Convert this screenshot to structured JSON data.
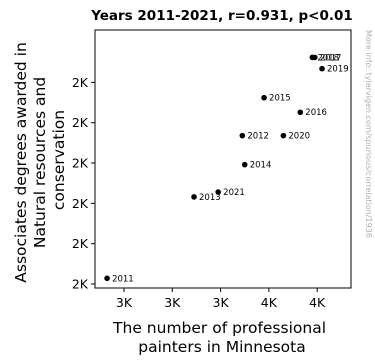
{
  "chart_data": {
    "type": "scatter",
    "title": "Years 2011-2021, r=0.931, p<0.01",
    "xlabel": "The number of professional painters in Minnesota",
    "xlabel_lines": [
      "The number of professional",
      "painters in Minnesota"
    ],
    "ylabel": "Associates degrees awarded in Natural resources and conservation",
    "ylabel_lines": [
      "Associates degrees awarded in",
      "Natural resources and",
      "conservation"
    ],
    "xlim": [
      3180,
      4240
    ],
    "ylim": [
      1845,
      2165
    ],
    "x_ticks": [
      {
        "value": 3300,
        "label": "3K"
      },
      {
        "value": 3500,
        "label": "3K"
      },
      {
        "value": 3700,
        "label": "3K"
      },
      {
        "value": 3900,
        "label": "4K"
      },
      {
        "value": 4100,
        "label": "4K"
      },
      {
        "value": 4300,
        "label": "4K"
      }
    ],
    "y_ticks": [
      {
        "value": 1850,
        "label": "2K"
      },
      {
        "value": 1900,
        "label": "2K"
      },
      {
        "value": 1950,
        "label": "2K"
      },
      {
        "value": 2000,
        "label": "2K"
      },
      {
        "value": 2050,
        "label": "2K"
      },
      {
        "value": 2100,
        "label": "2K"
      }
    ],
    "grid": false,
    "points": [
      {
        "label": "2011",
        "x": 3230,
        "y": 1857
      },
      {
        "label": "2012",
        "x": 3790,
        "y": 2034
      },
      {
        "label": "2013",
        "x": 3590,
        "y": 1958
      },
      {
        "label": "2014",
        "x": 3800,
        "y": 1998
      },
      {
        "label": "2015",
        "x": 3880,
        "y": 2081
      },
      {
        "label": "2016",
        "x": 4030,
        "y": 2063
      },
      {
        "label": "2017",
        "x": 4090,
        "y": 2131
      },
      {
        "label": "2018",
        "x": 4080,
        "y": 2131
      },
      {
        "label": "2019",
        "x": 4120,
        "y": 2117
      },
      {
        "label": "2020",
        "x": 3960,
        "y": 2034
      },
      {
        "label": "2021",
        "x": 3690,
        "y": 1964
      }
    ]
  },
  "watermark": "More info: tylervigen.com/spurious/correlation/1936"
}
